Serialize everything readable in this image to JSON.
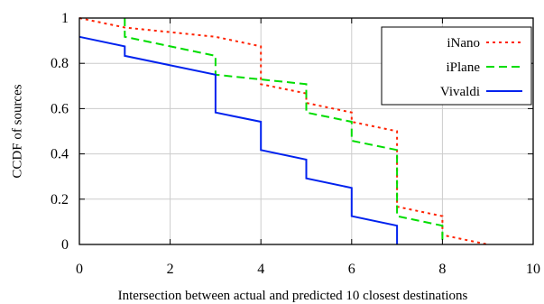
{
  "chart_data": {
    "type": "line",
    "title": "",
    "xlabel": "Intersection between actual and predicted 10 closest destinations",
    "ylabel": "CCDF of sources",
    "xlim": [
      0,
      10
    ],
    "ylim": [
      0,
      1
    ],
    "xticks": [
      0,
      2,
      4,
      6,
      8,
      10
    ],
    "yticks": [
      0,
      0.2,
      0.4,
      0.6,
      0.8,
      1
    ],
    "xtick_labels": [
      "0",
      "2",
      "4",
      "6",
      "8",
      "10"
    ],
    "ytick_labels": [
      "0",
      "0.2",
      "0.4",
      "0.6",
      "0.8",
      "1"
    ],
    "grid": true,
    "legend_position": "top-right",
    "series": [
      {
        "name": "iNano",
        "color": "#ff2200",
        "dash": "dotted",
        "x": [
          0,
          1,
          1,
          3,
          4,
          4,
          5,
          5,
          6,
          6,
          7,
          7,
          8,
          8,
          9
        ],
        "y": [
          1.0,
          0.958,
          0.958,
          0.917,
          0.875,
          0.708,
          0.667,
          0.625,
          0.583,
          0.542,
          0.5,
          0.167,
          0.125,
          0.042,
          0.0
        ]
      },
      {
        "name": "iPlane",
        "color": "#00dd00",
        "dash": "dashed",
        "x": [
          1,
          1,
          3,
          3,
          5,
          5,
          6,
          6,
          7,
          7,
          8,
          8
        ],
        "y": [
          1.0,
          0.917,
          0.833,
          0.75,
          0.708,
          0.583,
          0.542,
          0.458,
          0.417,
          0.125,
          0.083,
          0.0
        ]
      },
      {
        "name": "Vivaldi",
        "color": "#0022ee",
        "dash": "solid",
        "x": [
          0,
          1,
          1,
          3,
          3,
          4,
          4,
          5,
          5,
          6,
          6,
          7,
          7
        ],
        "y": [
          0.917,
          0.875,
          0.833,
          0.75,
          0.583,
          0.542,
          0.417,
          0.375,
          0.292,
          0.25,
          0.125,
          0.083,
          0.0
        ]
      }
    ]
  }
}
